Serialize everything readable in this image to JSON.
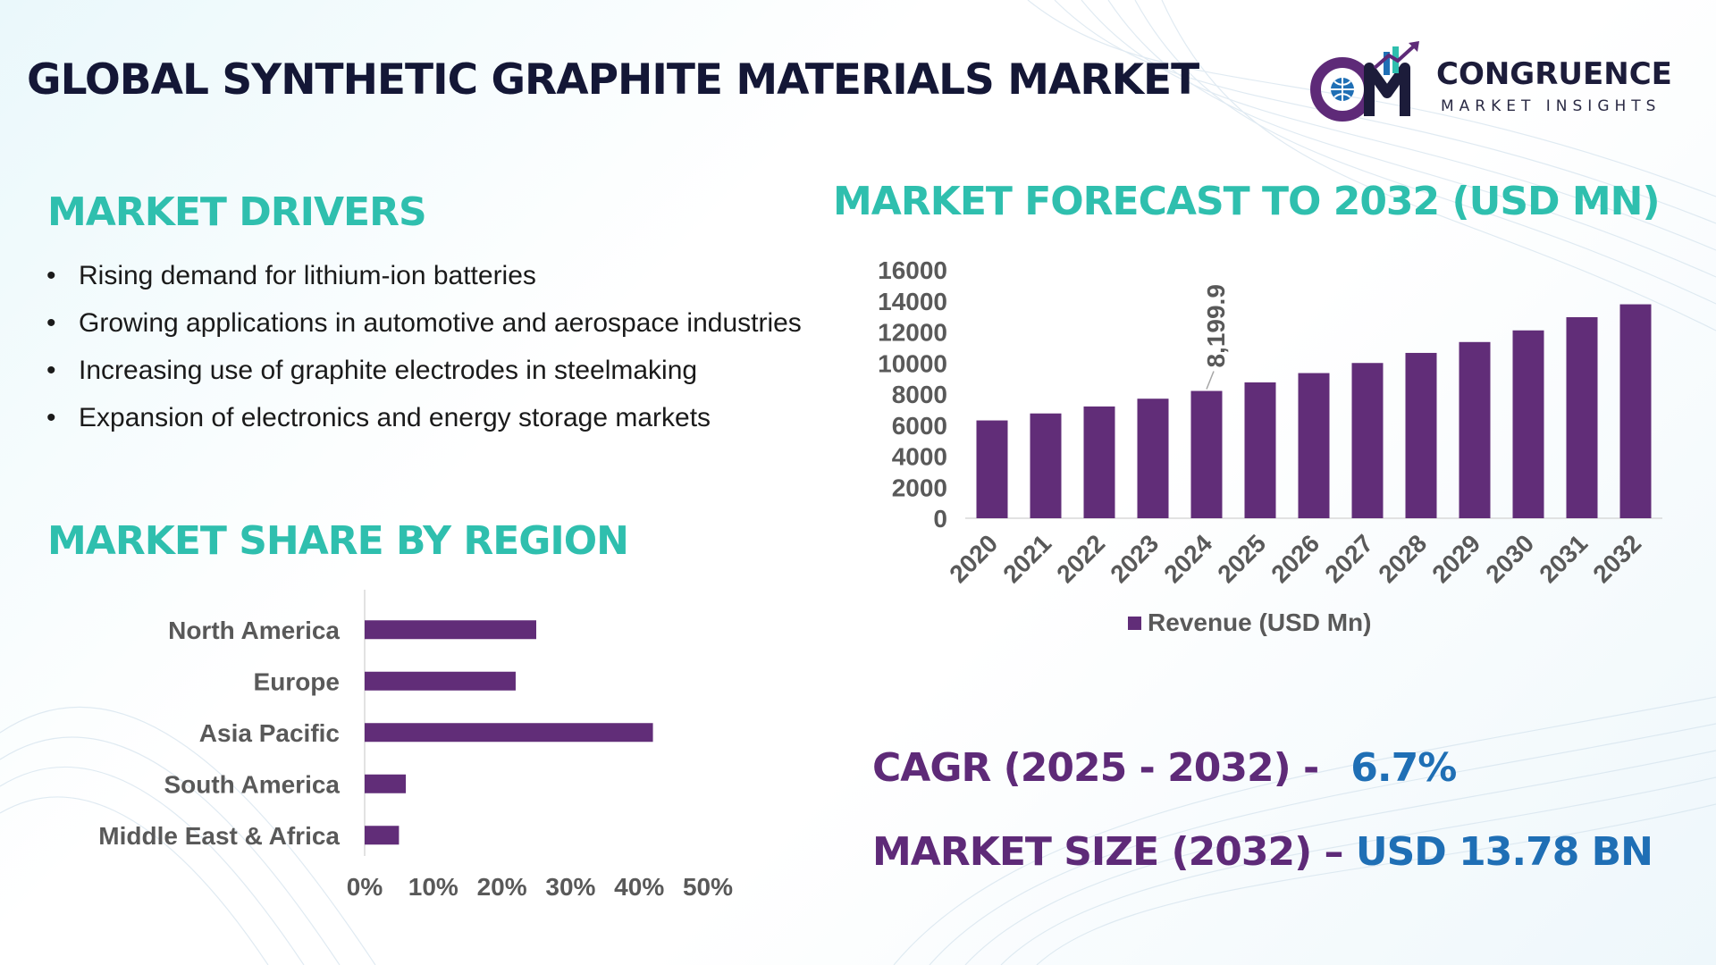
{
  "title": "GLOBAL SYNTHETIC GRAPHITE MATERIALS MARKET",
  "logo": {
    "name": "CONGRUENCE",
    "subtitle": "MARKET INSIGHTS",
    "brand_colors": [
      "#5e2a78",
      "#1f6fb5",
      "#1c1c3a"
    ]
  },
  "drivers": {
    "heading": "MARKET DRIVERS",
    "items": [
      "Rising demand for lithium-ion batteries",
      "Growing applications in automotive and aerospace industries",
      "Increasing use of graphite electrodes in steelmaking",
      "Expansion of electronics and energy storage markets"
    ]
  },
  "share": {
    "heading": "MARKET SHARE BY REGION"
  },
  "forecast": {
    "heading": "MARKET FORECAST TO 2032 (USD MN)"
  },
  "stats": {
    "cagr_label": "CAGR (2025 - 2032) -",
    "cagr_value": "6.7%",
    "size_label": "MARKET SIZE (2032) –",
    "size_value": "USD 13.78 BN"
  },
  "colors": {
    "bar": "#612d78",
    "accent_teal": "#2fbfae",
    "stat_label": "#5e2a78",
    "stat_value": "#1f6fb5"
  },
  "chart_data": [
    {
      "type": "bar",
      "orientation": "horizontal",
      "title": "",
      "categories": [
        "North America",
        "Europe",
        "Asia Pacific",
        "South America",
        "Middle East & Africa"
      ],
      "values": [
        25,
        22,
        42,
        6,
        5
      ],
      "xlim": [
        0,
        50
      ],
      "xticks": [
        "0%",
        "10%",
        "20%",
        "30%",
        "40%",
        "50%"
      ],
      "grid": false
    },
    {
      "type": "bar",
      "orientation": "vertical",
      "title": "",
      "categories": [
        "2020",
        "2021",
        "2022",
        "2023",
        "2024",
        "2025",
        "2026",
        "2027",
        "2028",
        "2029",
        "2030",
        "2031",
        "2032"
      ],
      "series": [
        {
          "name": "Revenue (USD Mn)",
          "values": [
            6300,
            6750,
            7200,
            7700,
            8199.9,
            8750,
            9350,
            10000,
            10650,
            11350,
            12100,
            12950,
            13780
          ]
        }
      ],
      "data_labels": [
        {
          "category": "2024",
          "text": "8,199.9"
        }
      ],
      "ylim": [
        0,
        16000
      ],
      "yticks": [
        "0",
        "2000",
        "4000",
        "6000",
        "8000",
        "10000",
        "12000",
        "14000",
        "16000"
      ],
      "legend": "bottom",
      "grid": false
    }
  ]
}
